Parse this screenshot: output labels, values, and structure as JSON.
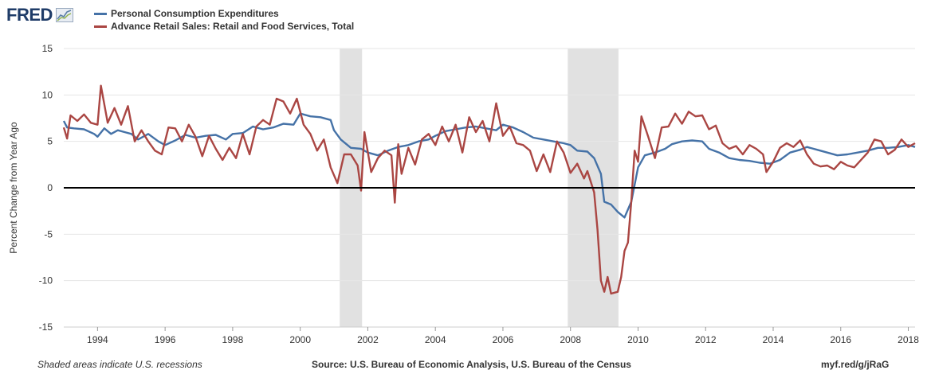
{
  "header": {
    "logo_text": "FRED"
  },
  "icons": {
    "logo_graph": "line-graph-icon"
  },
  "chart_data": {
    "type": "line",
    "ylabel": "Percent Change from Year Ago",
    "ylim": [
      -15,
      15
    ],
    "yticks": [
      15,
      10,
      5,
      0,
      -5,
      -10,
      -15
    ],
    "xlim": [
      1993.0,
      2018.2
    ],
    "xticks": [
      "1994",
      "1996",
      "1998",
      "2000",
      "2002",
      "2004",
      "2006",
      "2008",
      "2010",
      "2012",
      "2014",
      "2016",
      "2018"
    ],
    "grid": true,
    "legend_position": "top-left",
    "recessions": [
      [
        2001.17,
        2001.83
      ],
      [
        2007.92,
        2009.42
      ]
    ],
    "series": [
      {
        "name": "Personal Consumption Expenditures",
        "color": "#4572a7",
        "points": [
          [
            1993.0,
            7.2
          ],
          [
            1993.1,
            6.5
          ],
          [
            1993.3,
            6.4
          ],
          [
            1993.6,
            6.3
          ],
          [
            1993.9,
            5.8
          ],
          [
            1994.0,
            5.5
          ],
          [
            1994.2,
            6.4
          ],
          [
            1994.4,
            5.8
          ],
          [
            1994.6,
            6.2
          ],
          [
            1994.8,
            6.0
          ],
          [
            1995.0,
            5.8
          ],
          [
            1995.2,
            5.2
          ],
          [
            1995.5,
            5.8
          ],
          [
            1995.8,
            5.0
          ],
          [
            1996.0,
            4.6
          ],
          [
            1996.3,
            5.1
          ],
          [
            1996.6,
            5.7
          ],
          [
            1996.9,
            5.4
          ],
          [
            1997.2,
            5.6
          ],
          [
            1997.5,
            5.7
          ],
          [
            1997.8,
            5.2
          ],
          [
            1998.0,
            5.8
          ],
          [
            1998.3,
            5.9
          ],
          [
            1998.6,
            6.6
          ],
          [
            1998.9,
            6.3
          ],
          [
            1999.2,
            6.5
          ],
          [
            1999.5,
            6.9
          ],
          [
            1999.8,
            6.8
          ],
          [
            2000.0,
            8.0
          ],
          [
            2000.3,
            7.7
          ],
          [
            2000.6,
            7.6
          ],
          [
            2000.9,
            7.3
          ],
          [
            2001.0,
            6.2
          ],
          [
            2001.2,
            5.2
          ],
          [
            2001.5,
            4.3
          ],
          [
            2001.8,
            4.2
          ],
          [
            2002.0,
            3.8
          ],
          [
            2002.3,
            3.5
          ],
          [
            2002.6,
            4.0
          ],
          [
            2002.9,
            4.4
          ],
          [
            2003.2,
            4.6
          ],
          [
            2003.5,
            5.0
          ],
          [
            2003.8,
            5.2
          ],
          [
            2004.0,
            5.6
          ],
          [
            2004.3,
            6.1
          ],
          [
            2004.6,
            6.3
          ],
          [
            2004.9,
            6.5
          ],
          [
            2005.2,
            6.6
          ],
          [
            2005.5,
            6.4
          ],
          [
            2005.8,
            6.2
          ],
          [
            2006.0,
            6.8
          ],
          [
            2006.3,
            6.5
          ],
          [
            2006.6,
            6.0
          ],
          [
            2006.9,
            5.4
          ],
          [
            2007.2,
            5.2
          ],
          [
            2007.5,
            5.0
          ],
          [
            2007.8,
            4.8
          ],
          [
            2008.0,
            4.6
          ],
          [
            2008.2,
            4.0
          ],
          [
            2008.5,
            3.9
          ],
          [
            2008.7,
            3.2
          ],
          [
            2008.9,
            1.5
          ],
          [
            2009.0,
            -1.5
          ],
          [
            2009.2,
            -1.8
          ],
          [
            2009.4,
            -2.6
          ],
          [
            2009.6,
            -3.2
          ],
          [
            2009.8,
            -1.5
          ],
          [
            2010.0,
            2.2
          ],
          [
            2010.2,
            3.5
          ],
          [
            2010.5,
            3.8
          ],
          [
            2010.8,
            4.2
          ],
          [
            2011.0,
            4.7
          ],
          [
            2011.3,
            5.0
          ],
          [
            2011.6,
            5.1
          ],
          [
            2011.9,
            5.0
          ],
          [
            2012.1,
            4.2
          ],
          [
            2012.4,
            3.8
          ],
          [
            2012.7,
            3.2
          ],
          [
            2013.0,
            3.0
          ],
          [
            2013.3,
            2.9
          ],
          [
            2013.6,
            2.7
          ],
          [
            2013.9,
            2.6
          ],
          [
            2014.2,
            3.0
          ],
          [
            2014.5,
            3.8
          ],
          [
            2014.8,
            4.1
          ],
          [
            2015.0,
            4.4
          ],
          [
            2015.3,
            4.1
          ],
          [
            2015.6,
            3.8
          ],
          [
            2015.9,
            3.5
          ],
          [
            2016.2,
            3.6
          ],
          [
            2016.5,
            3.8
          ],
          [
            2016.8,
            4.0
          ],
          [
            2017.1,
            4.3
          ],
          [
            2017.4,
            4.3
          ],
          [
            2017.7,
            4.4
          ],
          [
            2018.0,
            4.6
          ],
          [
            2018.2,
            4.4
          ]
        ]
      },
      {
        "name": "Advance Retail Sales: Retail and Food Services, Total",
        "color": "#aa4643",
        "points": [
          [
            1993.0,
            6.5
          ],
          [
            1993.1,
            5.3
          ],
          [
            1993.2,
            7.8
          ],
          [
            1993.4,
            7.2
          ],
          [
            1993.6,
            7.9
          ],
          [
            1993.8,
            7.0
          ],
          [
            1994.0,
            6.8
          ],
          [
            1994.1,
            11.0
          ],
          [
            1994.3,
            7.0
          ],
          [
            1994.5,
            8.6
          ],
          [
            1994.7,
            6.8
          ],
          [
            1994.9,
            8.8
          ],
          [
            1995.1,
            5.0
          ],
          [
            1995.3,
            6.2
          ],
          [
            1995.5,
            5.0
          ],
          [
            1995.7,
            4.0
          ],
          [
            1995.9,
            3.6
          ],
          [
            1996.1,
            6.5
          ],
          [
            1996.3,
            6.4
          ],
          [
            1996.5,
            5.0
          ],
          [
            1996.7,
            6.8
          ],
          [
            1996.9,
            5.5
          ],
          [
            1997.1,
            3.4
          ],
          [
            1997.3,
            5.6
          ],
          [
            1997.5,
            4.2
          ],
          [
            1997.7,
            3.0
          ],
          [
            1997.9,
            4.3
          ],
          [
            1998.1,
            3.2
          ],
          [
            1998.3,
            5.8
          ],
          [
            1998.5,
            3.6
          ],
          [
            1998.7,
            6.6
          ],
          [
            1998.9,
            7.3
          ],
          [
            1999.1,
            6.8
          ],
          [
            1999.3,
            9.6
          ],
          [
            1999.5,
            9.3
          ],
          [
            1999.7,
            8.0
          ],
          [
            1999.9,
            9.6
          ],
          [
            2000.1,
            6.8
          ],
          [
            2000.3,
            5.8
          ],
          [
            2000.5,
            4.0
          ],
          [
            2000.7,
            5.2
          ],
          [
            2000.9,
            2.2
          ],
          [
            2001.1,
            0.5
          ],
          [
            2001.3,
            3.6
          ],
          [
            2001.5,
            3.6
          ],
          [
            2001.7,
            2.4
          ],
          [
            2001.8,
            -0.3
          ],
          [
            2001.9,
            6.0
          ],
          [
            2002.1,
            1.7
          ],
          [
            2002.3,
            3.2
          ],
          [
            2002.5,
            4.0
          ],
          [
            2002.7,
            3.5
          ],
          [
            2002.8,
            -1.6
          ],
          [
            2002.9,
            4.7
          ],
          [
            2003.0,
            1.5
          ],
          [
            2003.2,
            4.3
          ],
          [
            2003.4,
            2.5
          ],
          [
            2003.6,
            5.2
          ],
          [
            2003.8,
            5.8
          ],
          [
            2004.0,
            4.6
          ],
          [
            2004.2,
            6.6
          ],
          [
            2004.4,
            5.0
          ],
          [
            2004.6,
            6.8
          ],
          [
            2004.8,
            3.8
          ],
          [
            2005.0,
            7.6
          ],
          [
            2005.2,
            6.0
          ],
          [
            2005.4,
            7.2
          ],
          [
            2005.6,
            5.0
          ],
          [
            2005.8,
            9.1
          ],
          [
            2006.0,
            5.6
          ],
          [
            2006.2,
            6.6
          ],
          [
            2006.4,
            4.8
          ],
          [
            2006.6,
            4.6
          ],
          [
            2006.8,
            4.0
          ],
          [
            2007.0,
            1.8
          ],
          [
            2007.2,
            3.6
          ],
          [
            2007.4,
            1.7
          ],
          [
            2007.6,
            5.0
          ],
          [
            2007.8,
            3.8
          ],
          [
            2008.0,
            1.6
          ],
          [
            2008.2,
            2.6
          ],
          [
            2008.4,
            1.0
          ],
          [
            2008.5,
            1.8
          ],
          [
            2008.7,
            -0.5
          ],
          [
            2008.8,
            -4.5
          ],
          [
            2008.9,
            -10.0
          ],
          [
            2009.0,
            -11.2
          ],
          [
            2009.1,
            -9.6
          ],
          [
            2009.2,
            -11.4
          ],
          [
            2009.4,
            -11.2
          ],
          [
            2009.5,
            -9.6
          ],
          [
            2009.6,
            -6.8
          ],
          [
            2009.7,
            -5.9
          ],
          [
            2009.8,
            -1.5
          ],
          [
            2009.9,
            4.0
          ],
          [
            2010.0,
            2.8
          ],
          [
            2010.1,
            7.7
          ],
          [
            2010.3,
            5.5
          ],
          [
            2010.5,
            3.2
          ],
          [
            2010.7,
            6.5
          ],
          [
            2010.9,
            6.6
          ],
          [
            2011.1,
            8.0
          ],
          [
            2011.3,
            6.9
          ],
          [
            2011.5,
            8.2
          ],
          [
            2011.7,
            7.7
          ],
          [
            2011.9,
            7.8
          ],
          [
            2012.1,
            6.3
          ],
          [
            2012.3,
            6.7
          ],
          [
            2012.5,
            4.8
          ],
          [
            2012.7,
            4.2
          ],
          [
            2012.9,
            4.5
          ],
          [
            2013.1,
            3.6
          ],
          [
            2013.3,
            4.6
          ],
          [
            2013.5,
            4.2
          ],
          [
            2013.7,
            3.6
          ],
          [
            2013.8,
            1.7
          ],
          [
            2014.0,
            2.8
          ],
          [
            2014.2,
            4.3
          ],
          [
            2014.4,
            4.8
          ],
          [
            2014.6,
            4.4
          ],
          [
            2014.8,
            5.1
          ],
          [
            2015.0,
            3.6
          ],
          [
            2015.2,
            2.6
          ],
          [
            2015.4,
            2.3
          ],
          [
            2015.6,
            2.4
          ],
          [
            2015.8,
            2.0
          ],
          [
            2016.0,
            2.8
          ],
          [
            2016.2,
            2.4
          ],
          [
            2016.4,
            2.2
          ],
          [
            2016.6,
            3.0
          ],
          [
            2016.8,
            3.8
          ],
          [
            2017.0,
            5.2
          ],
          [
            2017.2,
            5.0
          ],
          [
            2017.4,
            3.6
          ],
          [
            2017.6,
            4.1
          ],
          [
            2017.8,
            5.2
          ],
          [
            2018.0,
            4.4
          ],
          [
            2018.2,
            4.8
          ]
        ]
      }
    ]
  },
  "footer": {
    "note": "Shaded areas indicate U.S. recessions",
    "source": "Source: U.S. Bureau of Economic Analysis, U.S. Bureau of the Census",
    "url": "myf.red/g/jRaG"
  }
}
